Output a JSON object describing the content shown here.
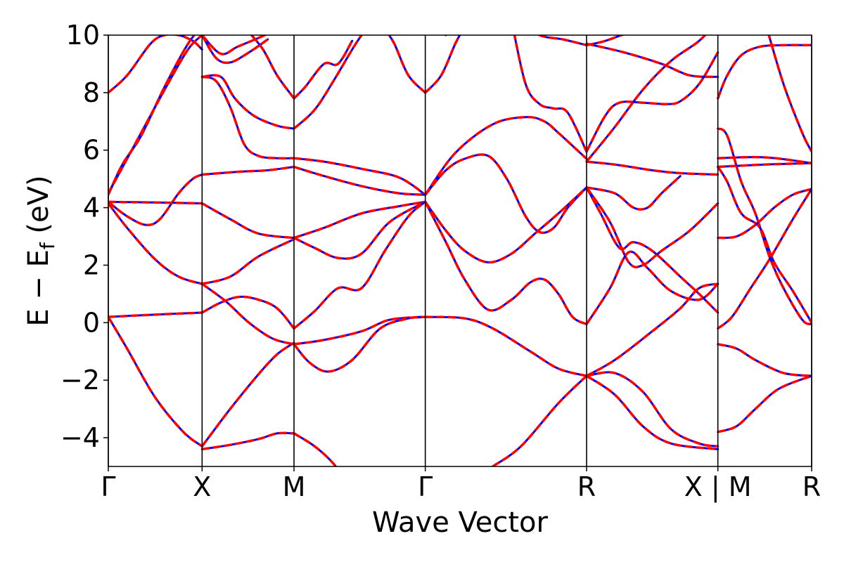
{
  "chart_data": {
    "type": "line",
    "title": "",
    "xlabel": "Wave Vector",
    "ylabel_parts": [
      "E − E",
      "f",
      " (eV)"
    ],
    "ylim": [
      -5,
      10
    ],
    "yticks": [
      -4,
      -2,
      0,
      2,
      4,
      6,
      8,
      10
    ],
    "ytick_labels": [
      "−4",
      "−2",
      "0",
      "2",
      "4",
      "6",
      "8",
      "10"
    ],
    "xlim": [
      0,
      7.5
    ],
    "high_symmetry_points": [
      {
        "x": 0,
        "label": "Γ"
      },
      {
        "x": 1.0,
        "label": "X"
      },
      {
        "x": 1.98,
        "label": "M"
      },
      {
        "x": 3.38,
        "label": "Γ"
      },
      {
        "x": 5.1,
        "label": "R"
      },
      {
        "x": 6.5,
        "label": "X | M"
      },
      {
        "x": 7.5,
        "label": "R"
      }
    ],
    "grid": false,
    "series_styles": [
      {
        "color": "#0000ff",
        "style": "solid",
        "width": 3
      },
      {
        "color": "#ff0000",
        "style": "dashed",
        "width": 3
      }
    ],
    "bands": [
      [
        [
          0,
          8.0
        ],
        [
          0.2,
          8.6
        ],
        [
          0.45,
          9.7
        ],
        [
          0.6,
          10.0
        ],
        [
          0.75,
          10.0
        ],
        [
          0.9,
          9.8
        ],
        [
          1.0,
          9.5
        ]
      ],
      [
        [
          0,
          4.5
        ],
        [
          0.3,
          6.3
        ],
        [
          0.6,
          8.1
        ],
        [
          0.85,
          9.5
        ],
        [
          1.0,
          10.0
        ]
      ],
      [
        [
          0,
          4.45
        ],
        [
          0.15,
          5.5
        ],
        [
          0.35,
          6.5
        ],
        [
          0.6,
          8.2
        ],
        [
          0.85,
          9.7
        ],
        [
          1.0,
          10.3
        ]
      ],
      [
        [
          0,
          4.2
        ],
        [
          0.2,
          3.7
        ],
        [
          0.4,
          3.4
        ],
        [
          0.55,
          3.6
        ],
        [
          0.75,
          4.5
        ],
        [
          0.9,
          5.0
        ],
        [
          1.0,
          5.15
        ]
      ],
      [
        [
          0,
          4.2
        ],
        [
          0.5,
          4.18
        ],
        [
          1.0,
          4.15
        ]
      ],
      [
        [
          0,
          4.15
        ],
        [
          0.2,
          3.3
        ],
        [
          0.5,
          2.2
        ],
        [
          0.75,
          1.6
        ],
        [
          1.0,
          1.35
        ]
      ],
      [
        [
          0,
          0.2
        ],
        [
          0.5,
          0.28
        ],
        [
          1.0,
          0.35
        ]
      ],
      [
        [
          0,
          0.2
        ],
        [
          0.2,
          -0.9
        ],
        [
          0.5,
          -2.6
        ],
        [
          0.8,
          -3.8
        ],
        [
          1.0,
          -4.3
        ]
      ],
      [
        [
          1.0,
          10.0
        ],
        [
          1.2,
          9.35
        ],
        [
          1.38,
          9.6
        ],
        [
          1.6,
          9.9
        ],
        [
          1.8,
          10.2
        ]
      ],
      [
        [
          1.0,
          10.0
        ],
        [
          1.15,
          9.2
        ],
        [
          1.3,
          9.05
        ],
        [
          1.5,
          9.4
        ],
        [
          1.7,
          9.85
        ]
      ],
      [
        [
          1.0,
          8.55
        ],
        [
          1.2,
          8.55
        ],
        [
          1.35,
          7.8
        ],
        [
          1.55,
          7.2
        ],
        [
          1.8,
          6.85
        ],
        [
          1.98,
          6.75
        ]
      ],
      [
        [
          1.0,
          8.55
        ],
        [
          1.15,
          8.4
        ],
        [
          1.3,
          7.5
        ],
        [
          1.45,
          6.2
        ],
        [
          1.6,
          5.8
        ],
        [
          1.8,
          5.72
        ],
        [
          1.98,
          5.72
        ]
      ],
      [
        [
          1.0,
          5.15
        ],
        [
          1.4,
          5.25
        ],
        [
          1.7,
          5.3
        ],
        [
          1.98,
          5.42
        ]
      ],
      [
        [
          1.0,
          4.15
        ],
        [
          1.3,
          3.6
        ],
        [
          1.6,
          3.1
        ],
        [
          1.98,
          2.95
        ]
      ],
      [
        [
          1.0,
          1.35
        ],
        [
          1.3,
          1.6
        ],
        [
          1.6,
          2.3
        ],
        [
          1.98,
          2.9
        ]
      ],
      [
        [
          1.0,
          1.35
        ],
        [
          1.25,
          0.75
        ],
        [
          1.5,
          0.0
        ],
        [
          1.75,
          -0.55
        ],
        [
          1.98,
          -0.75
        ]
      ],
      [
        [
          1.0,
          0.35
        ],
        [
          1.2,
          0.7
        ],
        [
          1.4,
          0.9
        ],
        [
          1.6,
          0.8
        ],
        [
          1.8,
          0.5
        ],
        [
          1.98,
          -0.2
        ]
      ],
      [
        [
          1.0,
          -4.3
        ],
        [
          1.3,
          -3.0
        ],
        [
          1.6,
          -1.8
        ],
        [
          1.8,
          -1.1
        ],
        [
          1.98,
          -0.7
        ]
      ],
      [
        [
          1.0,
          -4.4
        ],
        [
          1.3,
          -4.25
        ],
        [
          1.6,
          -4.05
        ],
        [
          1.8,
          -3.85
        ],
        [
          1.98,
          -3.85
        ]
      ],
      [
        [
          1.98,
          7.8
        ],
        [
          2.1,
          8.2
        ],
        [
          2.3,
          9.0
        ],
        [
          2.45,
          9.0
        ],
        [
          2.6,
          9.8
        ]
      ],
      [
        [
          1.98,
          7.8
        ],
        [
          1.8,
          8.6
        ],
        [
          1.65,
          9.5
        ],
        [
          1.5,
          10.1
        ]
      ],
      [
        [
          1.98,
          6.75
        ],
        [
          2.2,
          7.4
        ],
        [
          2.4,
          8.4
        ],
        [
          2.6,
          9.5
        ],
        [
          2.7,
          10.0
        ]
      ],
      [
        [
          1.98,
          5.72
        ],
        [
          2.3,
          5.6
        ],
        [
          2.7,
          5.35
        ],
        [
          3.1,
          5.05
        ],
        [
          3.38,
          4.45
        ]
      ],
      [
        [
          1.98,
          5.42
        ],
        [
          2.3,
          5.1
        ],
        [
          2.7,
          4.75
        ],
        [
          3.1,
          4.5
        ],
        [
          3.38,
          4.45
        ]
      ],
      [
        [
          1.98,
          2.95
        ],
        [
          2.3,
          3.3
        ],
        [
          2.7,
          3.8
        ],
        [
          3.1,
          4.05
        ],
        [
          3.38,
          4.2
        ]
      ],
      [
        [
          1.98,
          2.95
        ],
        [
          2.2,
          2.6
        ],
        [
          2.45,
          2.25
        ],
        [
          2.7,
          2.4
        ],
        [
          3.0,
          3.5
        ],
        [
          3.38,
          4.2
        ]
      ],
      [
        [
          1.98,
          -0.2
        ],
        [
          2.2,
          0.4
        ],
        [
          2.45,
          1.2
        ],
        [
          2.7,
          1.2
        ],
        [
          2.95,
          2.5
        ],
        [
          3.2,
          3.7
        ],
        [
          3.38,
          4.2
        ]
      ],
      [
        [
          1.98,
          -0.75
        ],
        [
          2.3,
          -0.6
        ],
        [
          2.7,
          -0.3
        ],
        [
          3.0,
          0.1
        ],
        [
          3.38,
          0.2
        ]
      ],
      [
        [
          1.98,
          -0.75
        ],
        [
          2.15,
          -1.4
        ],
        [
          2.35,
          -1.7
        ],
        [
          2.6,
          -1.3
        ],
        [
          2.9,
          -0.2
        ],
        [
          3.2,
          0.15
        ],
        [
          3.38,
          0.2
        ]
      ],
      [
        [
          1.98,
          -3.85
        ],
        [
          2.2,
          -4.3
        ],
        [
          2.4,
          -4.9
        ],
        [
          2.6,
          -5.8
        ]
      ],
      [
        [
          3.38,
          8.0
        ],
        [
          3.2,
          8.6
        ],
        [
          3.05,
          9.7
        ],
        [
          2.95,
          10.2
        ]
      ],
      [
        [
          3.38,
          8.0
        ],
        [
          3.55,
          8.6
        ],
        [
          3.7,
          9.7
        ],
        [
          3.8,
          10.3
        ]
      ],
      [
        [
          3.38,
          4.45
        ],
        [
          3.6,
          5.3
        ],
        [
          3.8,
          5.7
        ],
        [
          4.05,
          5.8
        ],
        [
          4.25,
          5.0
        ],
        [
          4.45,
          3.7
        ],
        [
          4.6,
          3.15
        ],
        [
          4.75,
          3.3
        ],
        [
          4.9,
          4.0
        ],
        [
          5.1,
          4.7
        ]
      ],
      [
        [
          3.38,
          4.45
        ],
        [
          3.7,
          5.9
        ],
        [
          4.1,
          6.9
        ],
        [
          4.45,
          7.15
        ],
        [
          4.65,
          7.0
        ],
        [
          4.8,
          6.6
        ],
        [
          5.0,
          6.0
        ],
        [
          5.1,
          5.7
        ]
      ],
      [
        [
          3.38,
          4.2
        ],
        [
          3.6,
          3.2
        ],
        [
          3.8,
          2.5
        ],
        [
          4.05,
          2.1
        ],
        [
          4.3,
          2.4
        ],
        [
          4.55,
          3.1
        ],
        [
          4.8,
          3.8
        ],
        [
          5.1,
          4.7
        ]
      ],
      [
        [
          3.38,
          4.2
        ],
        [
          3.6,
          2.8
        ],
        [
          3.8,
          1.5
        ],
        [
          4.05,
          0.45
        ],
        [
          4.3,
          0.8
        ],
        [
          4.5,
          1.4
        ],
        [
          4.65,
          1.5
        ],
        [
          4.8,
          1.0
        ],
        [
          4.95,
          0.2
        ],
        [
          5.1,
          -0.05
        ]
      ],
      [
        [
          3.38,
          0.2
        ],
        [
          3.8,
          0.15
        ],
        [
          4.1,
          -0.2
        ],
        [
          4.5,
          -1.0
        ],
        [
          4.8,
          -1.6
        ],
        [
          5.1,
          -1.85
        ]
      ],
      [
        [
          3.38,
          10.5
        ],
        [
          3.6,
          10.0
        ]
      ],
      [
        [
          4.3,
          10.5
        ],
        [
          4.45,
          8.3
        ],
        [
          4.6,
          7.6
        ],
        [
          4.75,
          7.45
        ],
        [
          4.9,
          7.3
        ],
        [
          5.1,
          5.95
        ]
      ],
      [
        [
          4.1,
          -5.0
        ],
        [
          4.4,
          -4.3
        ],
        [
          4.8,
          -2.8
        ],
        [
          5.1,
          -1.85
        ]
      ],
      [
        [
          4.4,
          10.5
        ],
        [
          4.6,
          10.0
        ],
        [
          4.85,
          9.85
        ],
        [
          5.1,
          9.65
        ]
      ],
      [
        [
          5.1,
          9.65
        ],
        [
          5.3,
          9.8
        ],
        [
          5.55,
          10.1
        ]
      ],
      [
        [
          5.1,
          5.95
        ],
        [
          5.3,
          7.2
        ],
        [
          5.45,
          7.65
        ],
        [
          5.7,
          7.65
        ],
        [
          5.95,
          7.6
        ],
        [
          6.1,
          7.7
        ],
        [
          6.3,
          8.3
        ],
        [
          6.5,
          9.4
        ]
      ],
      [
        [
          5.1,
          5.6
        ],
        [
          5.4,
          5.5
        ],
        [
          5.8,
          5.3
        ],
        [
          6.1,
          5.2
        ],
        [
          6.5,
          5.15
        ]
      ],
      [
        [
          5.1,
          5.6
        ],
        [
          5.4,
          6.8
        ],
        [
          5.7,
          8.1
        ],
        [
          6.0,
          9.1
        ],
        [
          6.3,
          9.8
        ],
        [
          6.5,
          10.5
        ]
      ],
      [
        [
          5.1,
          9.7
        ],
        [
          5.5,
          9.4
        ],
        [
          5.9,
          9.0
        ],
        [
          6.2,
          8.6
        ],
        [
          6.5,
          8.55
        ]
      ],
      [
        [
          5.1,
          4.7
        ],
        [
          5.4,
          4.5
        ],
        [
          5.6,
          4.0
        ],
        [
          5.75,
          4.0
        ],
        [
          5.9,
          4.5
        ],
        [
          6.1,
          5.1
        ]
      ],
      [
        [
          5.1,
          4.7
        ],
        [
          5.25,
          3.8
        ],
        [
          5.45,
          2.6
        ],
        [
          5.6,
          2.8
        ],
        [
          5.8,
          2.5
        ],
        [
          6.1,
          1.6
        ],
        [
          6.3,
          1.0
        ],
        [
          6.5,
          0.35
        ]
      ],
      [
        [
          5.1,
          4.7
        ],
        [
          5.35,
          3.5
        ],
        [
          5.55,
          2.1
        ],
        [
          5.7,
          2.0
        ],
        [
          5.9,
          2.5
        ],
        [
          6.2,
          3.2
        ],
        [
          6.5,
          4.15
        ]
      ],
      [
        [
          5.1,
          -0.05
        ],
        [
          5.35,
          1.2
        ],
        [
          5.55,
          2.45
        ],
        [
          5.75,
          1.9
        ],
        [
          6.0,
          1.1
        ],
        [
          6.3,
          0.8
        ],
        [
          6.5,
          1.35
        ]
      ],
      [
        [
          5.1,
          -1.85
        ],
        [
          5.4,
          -1.3
        ],
        [
          5.8,
          -0.3
        ],
        [
          6.1,
          0.5
        ],
        [
          6.3,
          1.2
        ],
        [
          6.5,
          1.35
        ]
      ],
      [
        [
          5.1,
          -1.85
        ],
        [
          5.4,
          -1.75
        ],
        [
          5.7,
          -2.4
        ],
        [
          6.0,
          -3.7
        ],
        [
          6.3,
          -4.2
        ],
        [
          6.5,
          -4.3
        ]
      ],
      [
        [
          5.1,
          -1.85
        ],
        [
          5.4,
          -2.5
        ],
        [
          5.7,
          -3.6
        ],
        [
          6.0,
          -4.2
        ],
        [
          6.5,
          -4.4
        ]
      ],
      [
        [
          6.5,
          7.8
        ],
        [
          6.6,
          8.6
        ],
        [
          6.75,
          9.3
        ],
        [
          6.95,
          9.6
        ],
        [
          7.2,
          9.65
        ],
        [
          7.5,
          9.65
        ]
      ],
      [
        [
          6.5,
          6.75
        ],
        [
          6.6,
          6.5
        ],
        [
          6.75,
          4.9
        ],
        [
          6.9,
          3.8
        ],
        [
          7.05,
          2.3
        ],
        [
          7.2,
          1.2
        ],
        [
          7.4,
          0.1
        ],
        [
          7.5,
          -0.05
        ]
      ],
      [
        [
          6.5,
          5.72
        ],
        [
          7.0,
          5.75
        ],
        [
          7.5,
          5.55
        ]
      ],
      [
        [
          6.5,
          5.42
        ],
        [
          7.0,
          5.5
        ],
        [
          7.5,
          5.55
        ]
      ],
      [
        [
          6.5,
          5.42
        ],
        [
          6.6,
          4.9
        ],
        [
          6.75,
          3.8
        ],
        [
          6.95,
          3.3
        ],
        [
          7.1,
          2.1
        ],
        [
          7.3,
          1.1
        ],
        [
          7.5,
          0.0
        ]
      ],
      [
        [
          6.5,
          2.95
        ],
        [
          6.7,
          3.0
        ],
        [
          6.9,
          3.4
        ],
        [
          7.1,
          4.0
        ],
        [
          7.3,
          4.45
        ],
        [
          7.5,
          4.65
        ]
      ],
      [
        [
          6.5,
          -0.2
        ],
        [
          6.65,
          0.2
        ],
        [
          6.85,
          1.2
        ],
        [
          7.05,
          2.2
        ],
        [
          7.3,
          3.6
        ],
        [
          7.5,
          4.65
        ]
      ],
      [
        [
          6.5,
          -0.75
        ],
        [
          6.7,
          -0.9
        ],
        [
          6.9,
          -1.3
        ],
        [
          7.2,
          -1.75
        ],
        [
          7.5,
          -1.85
        ]
      ],
      [
        [
          6.5,
          -3.8
        ],
        [
          6.7,
          -3.6
        ],
        [
          6.9,
          -3.0
        ],
        [
          7.15,
          -2.3
        ],
        [
          7.5,
          -1.85
        ]
      ],
      [
        [
          7.0,
          10.5
        ],
        [
          7.2,
          8.3
        ],
        [
          7.4,
          6.6
        ],
        [
          7.5,
          5.95
        ]
      ]
    ]
  }
}
